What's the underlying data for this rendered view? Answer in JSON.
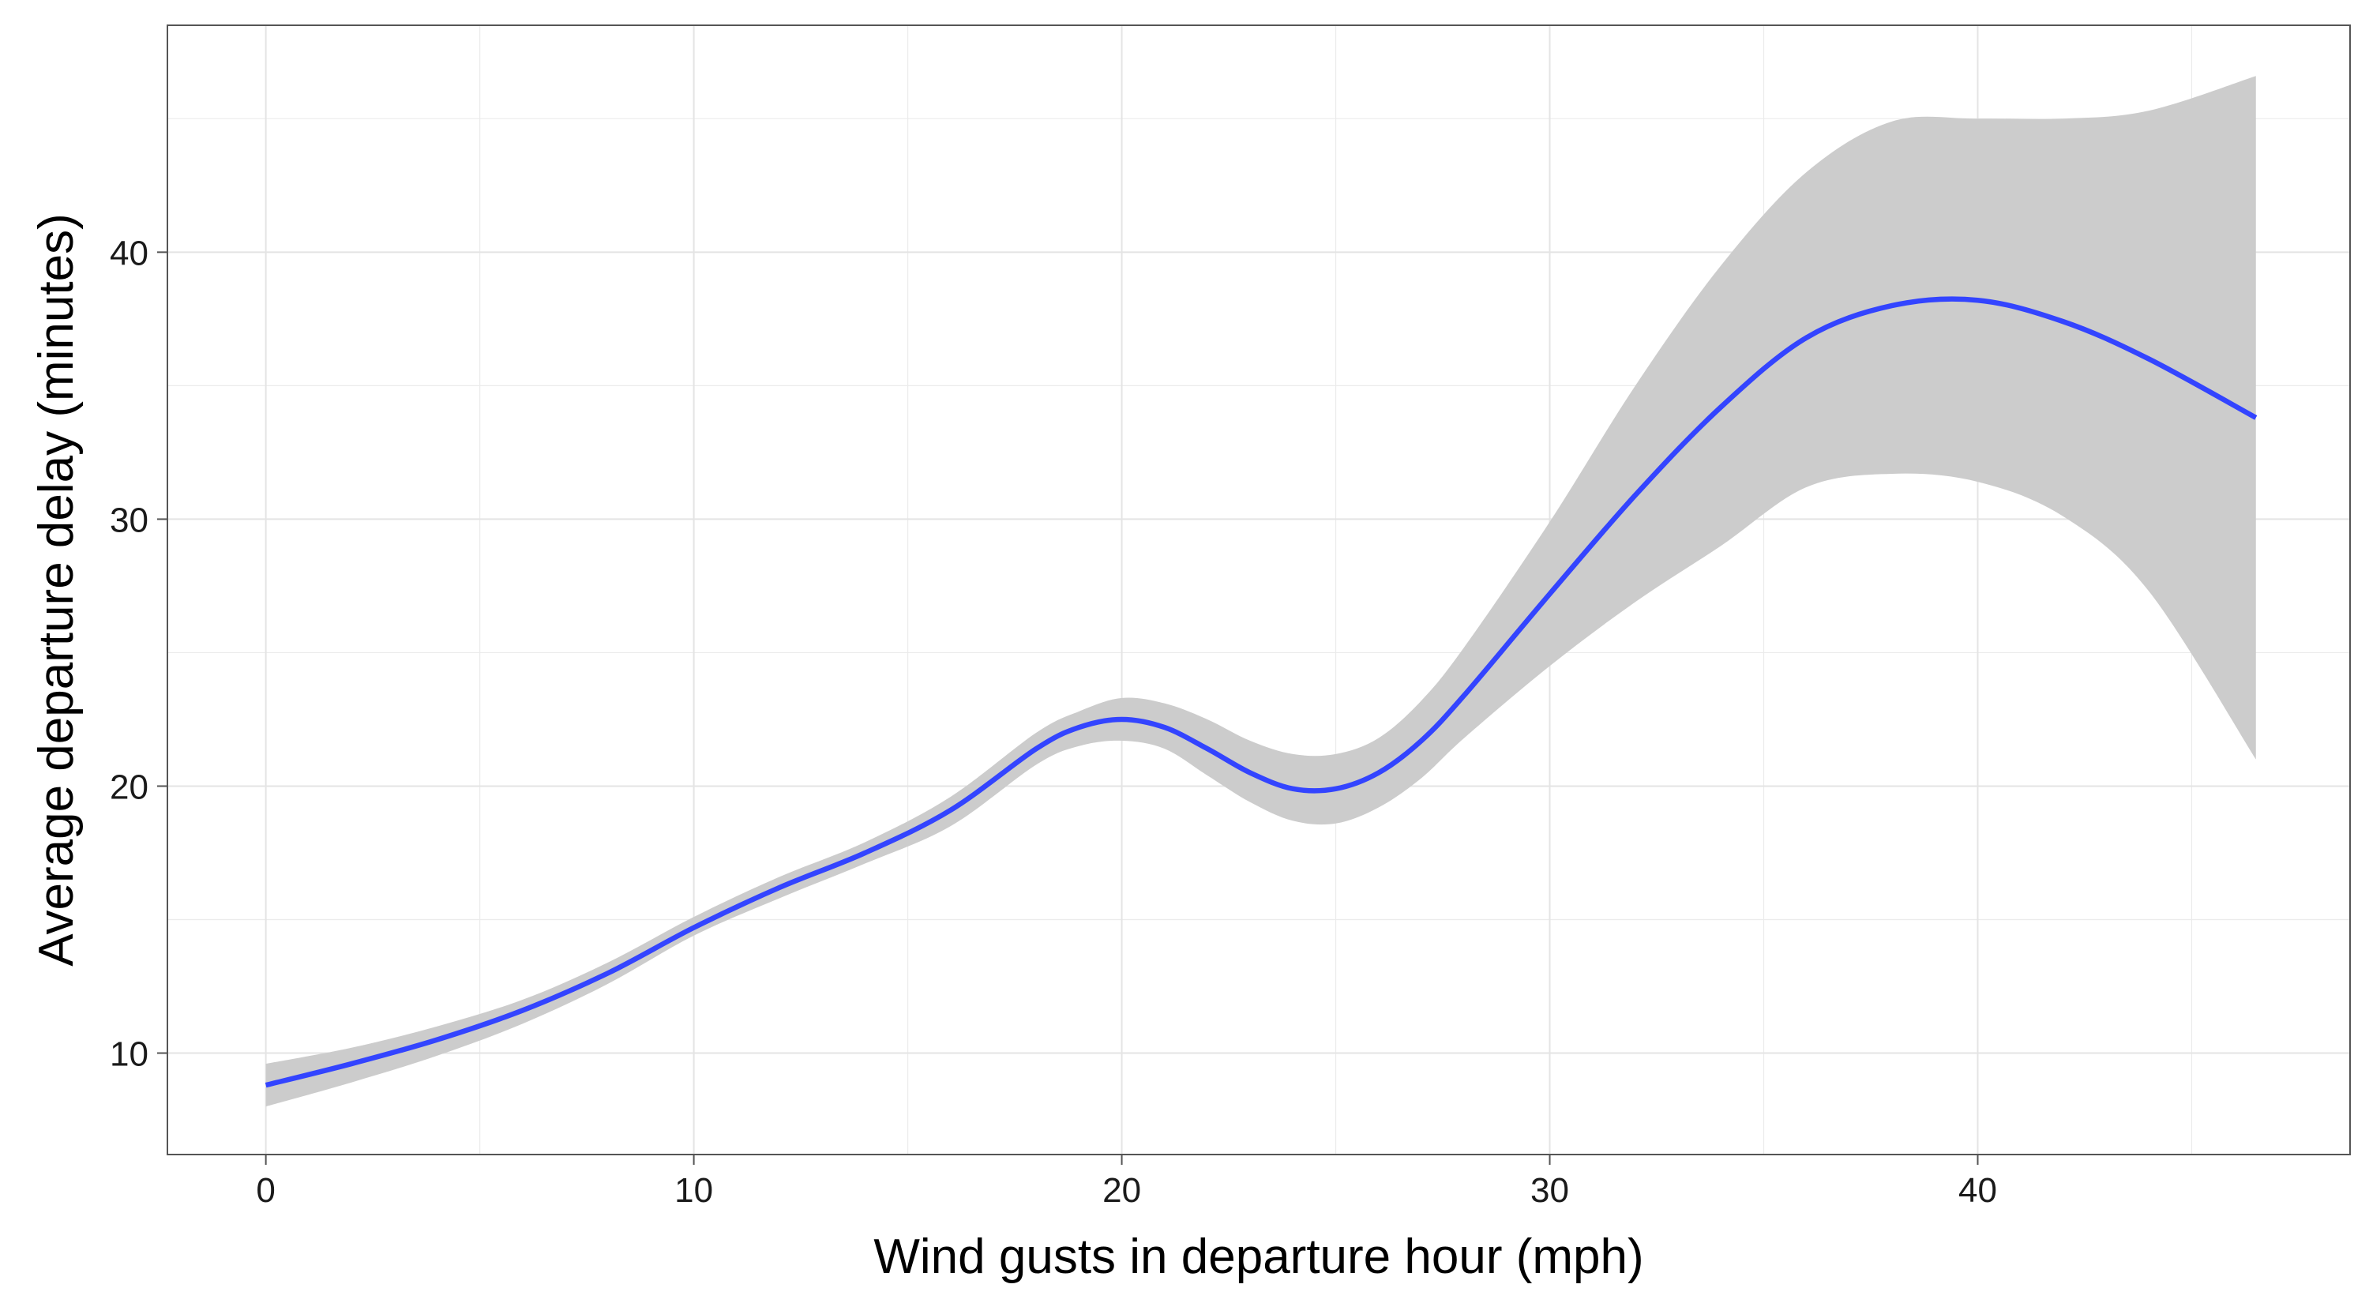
{
  "chart_data": {
    "type": "line",
    "title": "",
    "xlabel": "Wind gusts in departure hour (mph)",
    "ylabel": "Average departure delay (minutes)",
    "xlim": [
      -2.3,
      48.7
    ],
    "ylim": [
      6.2,
      48.5
    ],
    "x_ticks": [
      0,
      10,
      20,
      30,
      40
    ],
    "y_ticks": [
      10,
      20,
      30,
      40
    ],
    "x_tick_labels": [
      "0",
      "10",
      "20",
      "30",
      "40"
    ],
    "y_tick_labels": [
      "10",
      "20",
      "30",
      "40"
    ],
    "grid": true,
    "legend": "none",
    "colors": {
      "line": "#3344ff",
      "ribbon": "#cccccc",
      "grid": "#ebebeb",
      "panel_border": "#555555"
    },
    "series": [
      {
        "x": [
          0,
          2,
          4,
          6,
          8,
          10,
          12,
          14,
          16,
          18,
          19,
          20,
          21,
          22,
          23,
          24,
          25,
          26,
          27,
          28,
          30,
          32,
          34,
          36,
          38,
          40,
          42,
          44,
          46.5
        ],
        "y": [
          8.8,
          9.6,
          10.5,
          11.6,
          13.0,
          14.7,
          16.2,
          17.5,
          19.1,
          21.4,
          22.2,
          22.5,
          22.2,
          21.4,
          20.5,
          19.9,
          19.9,
          20.5,
          21.7,
          23.4,
          27.2,
          30.9,
          34.2,
          36.8,
          38.0,
          38.2,
          37.4,
          36.0,
          33.8
        ],
        "lower": [
          8.0,
          8.9,
          9.9,
          11.1,
          12.6,
          14.4,
          15.8,
          17.1,
          18.5,
          20.8,
          21.5,
          21.7,
          21.4,
          20.4,
          19.4,
          18.7,
          18.6,
          19.2,
          20.3,
          21.8,
          24.5,
          26.9,
          29.0,
          31.2,
          31.7,
          31.4,
          30.1,
          27.3,
          21.0
        ],
        "upper": [
          9.6,
          10.2,
          11.0,
          12.0,
          13.4,
          15.1,
          16.6,
          17.9,
          19.6,
          22.0,
          22.8,
          23.3,
          23.1,
          22.5,
          21.7,
          21.2,
          21.2,
          21.8,
          23.2,
          25.2,
          29.9,
          35.0,
          39.5,
          43.0,
          44.9,
          45.0,
          45.0,
          45.3,
          46.6
        ]
      }
    ]
  }
}
